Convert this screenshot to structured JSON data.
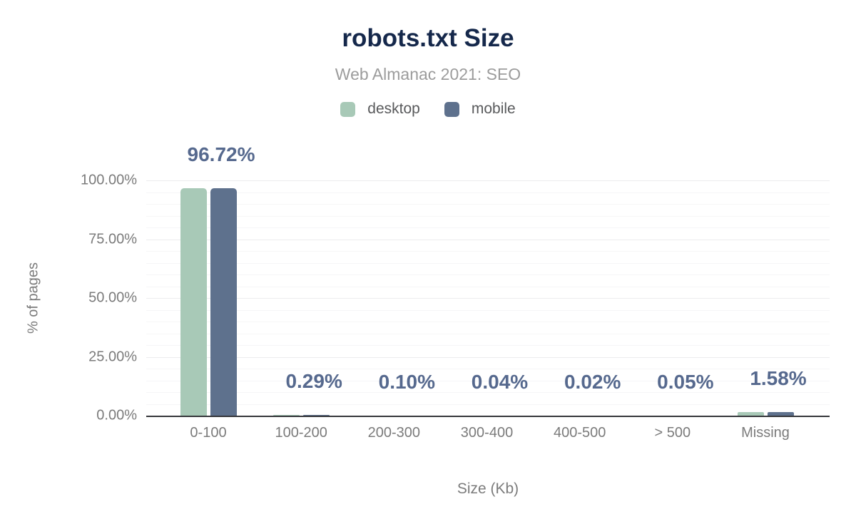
{
  "chart_data": {
    "type": "bar",
    "title": "robots.txt Size",
    "subtitle": "Web Almanac 2021: SEO",
    "xlabel": "Size (Kb)",
    "ylabel": "% of pages",
    "categories": [
      "0-100",
      "100-200",
      "200-300",
      "300-400",
      "400-500",
      "> 500",
      "Missing"
    ],
    "series": [
      {
        "name": "desktop",
        "color": "#a8c9b7",
        "values": [
          96.72,
          0.29,
          0.1,
          0.04,
          0.02,
          0.05,
          1.58
        ]
      },
      {
        "name": "mobile",
        "color": "#5e718d",
        "values": [
          96.72,
          0.29,
          0.1,
          0.04,
          0.02,
          0.05,
          1.58
        ]
      }
    ],
    "data_labels": [
      "96.72%",
      "0.29%",
      "0.10%",
      "0.04%",
      "0.02%",
      "0.05%",
      "1.58%"
    ],
    "yticks": [
      {
        "label": "0.00%",
        "value": 0
      },
      {
        "label": "25.00%",
        "value": 25
      },
      {
        "label": "50.00%",
        "value": 50
      },
      {
        "label": "75.00%",
        "value": 75
      },
      {
        "label": "100.00%",
        "value": 100
      }
    ],
    "ylim": [
      0,
      100
    ],
    "grid": {
      "minor_step": 5,
      "major_step": 25,
      "visible": true
    },
    "legend_position": "top",
    "colors": {
      "title": "#15284b",
      "subtitle": "#9c9c9c",
      "legend_text": "#58595b",
      "tick_text": "#7b7b7b",
      "data_label": "#56698e",
      "axis_line": "#35363a",
      "grid_minor": "#f6f6f7",
      "grid_major": "#ececee",
      "background": "#ffffff"
    }
  }
}
